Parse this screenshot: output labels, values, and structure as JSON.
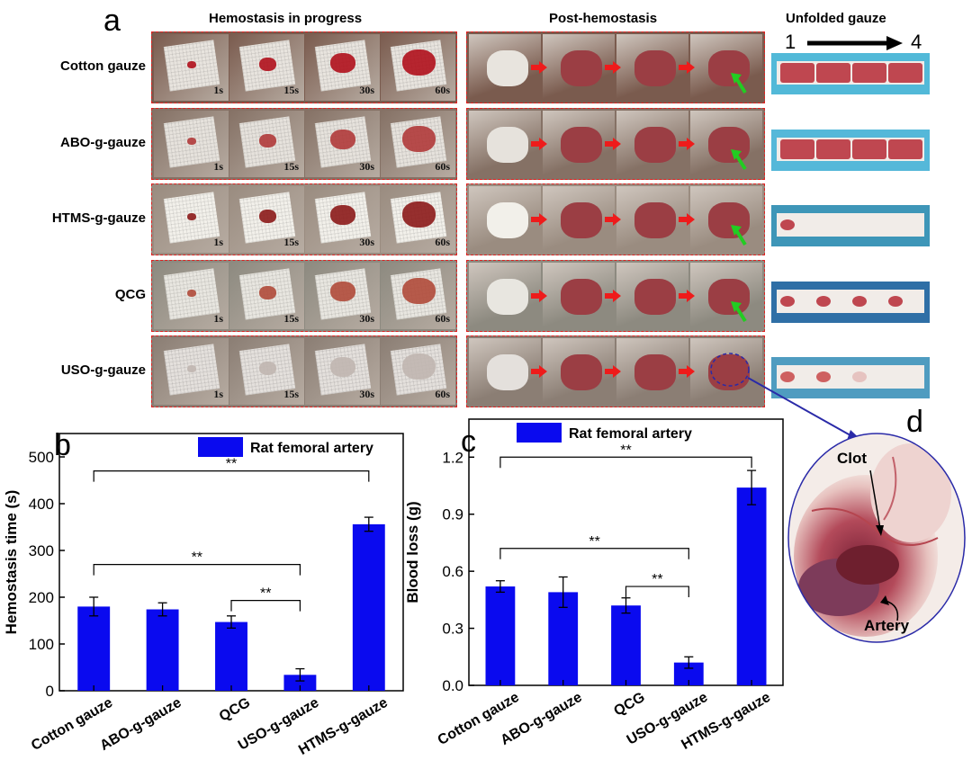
{
  "panels": {
    "a": "a",
    "b": "b",
    "c": "c",
    "d": "d"
  },
  "section_titles": {
    "progress": "Hemostasis in progress",
    "post": "Post-hemostasis",
    "unfolded": "Unfolded gauze",
    "unfold_from": "1",
    "unfold_to": "4"
  },
  "rows": [
    {
      "label": "Cotton gauze",
      "times": [
        "1s",
        "15s",
        "30s",
        "60s"
      ],
      "tone": "#7a5b4e",
      "blood": "#b0101c",
      "gauze": "#e8e4de",
      "bg_unfold": "#52b9d8"
    },
    {
      "label": "ABO-g-gauze",
      "times": [
        "1s",
        "15s",
        "30s",
        "60s"
      ],
      "tone": "#857165",
      "blood": "#b03a3a",
      "gauze": "#e6e2dc",
      "bg_unfold": "#55b8d9"
    },
    {
      "label": "HTMS-g-gauze",
      "times": [
        "1s",
        "15s",
        "30s",
        "60s"
      ],
      "tone": "#9a8c80",
      "blood": "#8c1a1a",
      "gauze": "#f2f0ea",
      "bg_unfold": "#3e96b8"
    },
    {
      "label": "QCG",
      "times": [
        "1s",
        "15s",
        "30s",
        "60s"
      ],
      "tone": "#8d8a80",
      "blood": "#b04a3a",
      "gauze": "#e8e6e0",
      "bg_unfold": "#2f6fa6"
    },
    {
      "label": "USO-g-gauze",
      "times": [
        "1s",
        "15s",
        "30s",
        "60s"
      ],
      "tone": "#8b7e74",
      "blood": "#c0b6b0",
      "gauze": "#e4e0dc",
      "bg_unfold": "#4f9cc0"
    }
  ],
  "panel_d": {
    "clot_label": "Clot",
    "artery_label": "Artery"
  },
  "chart_data": [
    {
      "type": "bar",
      "panel": "b",
      "title": "",
      "legend": "Rat femoral artery",
      "legend_position": "top-right",
      "xlabel": "",
      "ylabel": "Hemostasis time (s)",
      "categories": [
        "Cotton gauze",
        "ABO-g-gauze",
        "QCG",
        "USO-g-gauze",
        "HTMS-g-gauze"
      ],
      "values": [
        180,
        174,
        147,
        34,
        356
      ],
      "errors": [
        20,
        14,
        13,
        13,
        15
      ],
      "ylim": [
        0,
        550
      ],
      "yticks": [
        0,
        100,
        200,
        300,
        400,
        500
      ],
      "color": "#0a0aef",
      "significance": [
        {
          "from": 0,
          "to": 4,
          "label": "**",
          "level": 470
        },
        {
          "from": 0,
          "to": 3,
          "label": "**",
          "level": 270
        },
        {
          "from": 2,
          "to": 3,
          "label": "**",
          "level": 193
        }
      ]
    },
    {
      "type": "bar",
      "panel": "c",
      "title": "",
      "legend": "Rat femoral artery",
      "legend_position": "top-right",
      "xlabel": "",
      "ylabel": "Blood loss (g)",
      "categories": [
        "Cotton gauze",
        "ABO-g-gauze",
        "QCG",
        "USO-g-gauze",
        "HTMS-g-gauze"
      ],
      "values": [
        0.52,
        0.49,
        0.42,
        0.12,
        1.04
      ],
      "errors": [
        0.03,
        0.08,
        0.04,
        0.03,
        0.09
      ],
      "ylim": [
        0,
        1.4
      ],
      "yticks": [
        "0.0",
        "0.3",
        "0.6",
        "0.9",
        "1.2"
      ],
      "color": "#0a0aef",
      "significance": [
        {
          "from": 0,
          "to": 4,
          "label": "**",
          "level": 1.2
        },
        {
          "from": 0,
          "to": 3,
          "label": "**",
          "level": 0.72
        },
        {
          "from": 2,
          "to": 3,
          "label": "**",
          "level": 0.52
        }
      ]
    }
  ]
}
